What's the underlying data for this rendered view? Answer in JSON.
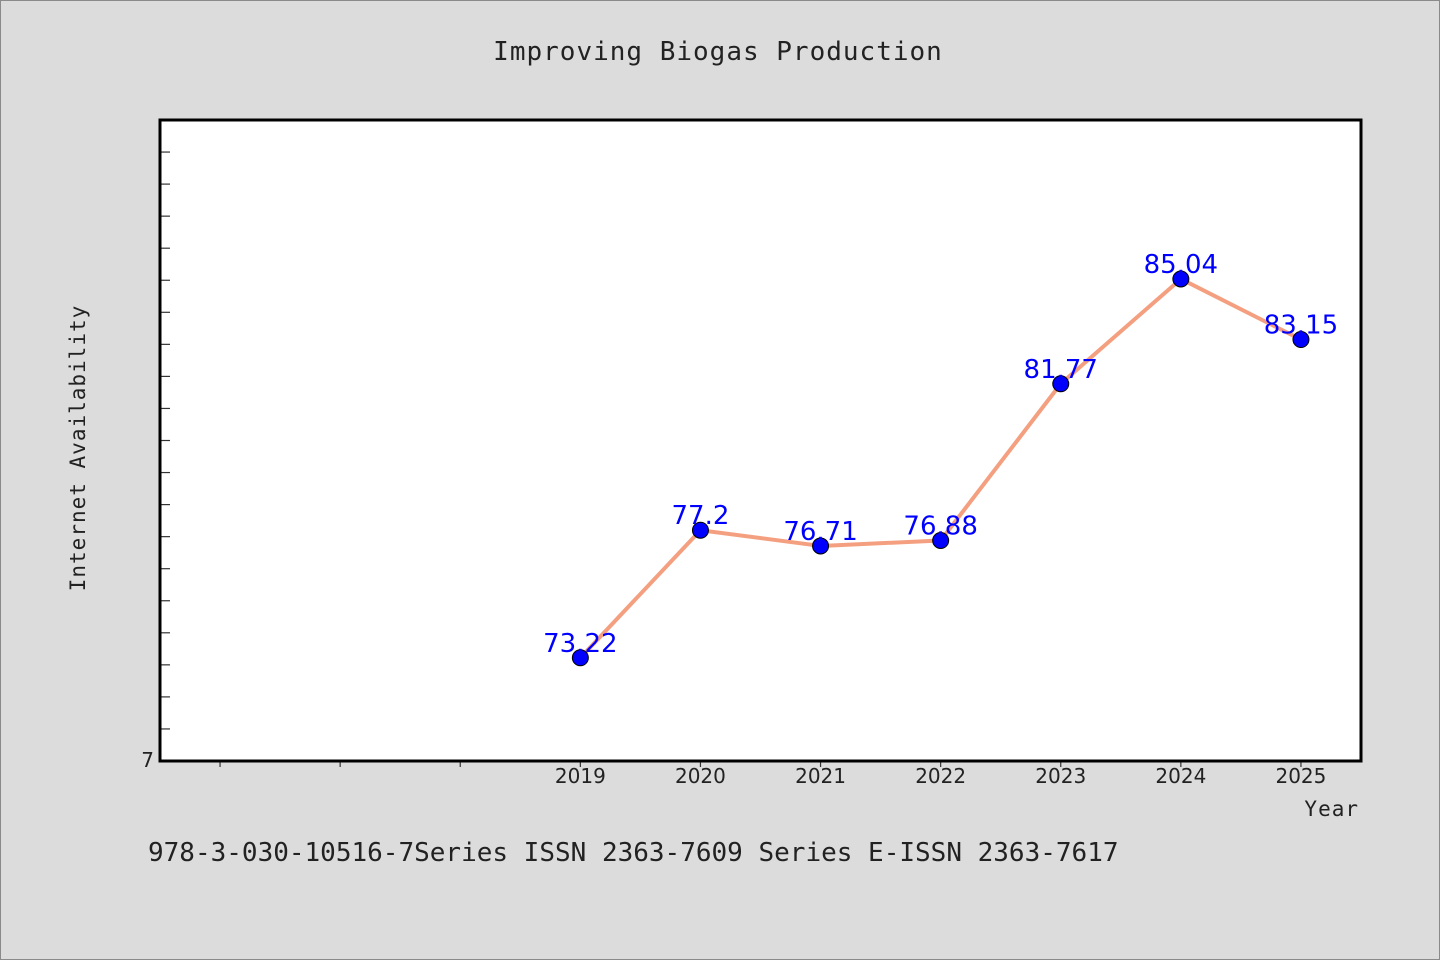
{
  "chart_data": {
    "type": "line",
    "title": "Improving Biogas Production",
    "xlabel": "Year",
    "ylabel": "Internet Availability",
    "x": [
      2019,
      2020,
      2021,
      2022,
      2023,
      2024,
      2025
    ],
    "series": [
      {
        "values": [
          73.22,
          77.2,
          76.71,
          76.88,
          81.77,
          85.04,
          83.15
        ],
        "line_color": "#f4a080",
        "marker_color": "#0000ff"
      }
    ],
    "data_labels": [
      "73.22",
      "77.2",
      "76.71",
      "76.88",
      "81.77",
      "85.04",
      "83.15"
    ],
    "x_tick_labels": [
      "2019",
      "2020",
      "2021",
      "2022",
      "2023",
      "2024",
      "2025"
    ],
    "y_tick_labels": [
      "7"
    ],
    "xlim": [
      2015.5,
      2025.5
    ],
    "ylim": [
      70,
      90
    ],
    "grid": false,
    "legend": "none"
  },
  "footer": {
    "text": "978-3-030-10516-7Series ISSN 2363-7609 Series E-ISSN 2363-7617"
  },
  "colors": {
    "background": "#dcdcdc",
    "plot_background": "#ffffff",
    "line": "#f4a080",
    "marker": "#0000ff",
    "data_label": "#0000ff"
  }
}
